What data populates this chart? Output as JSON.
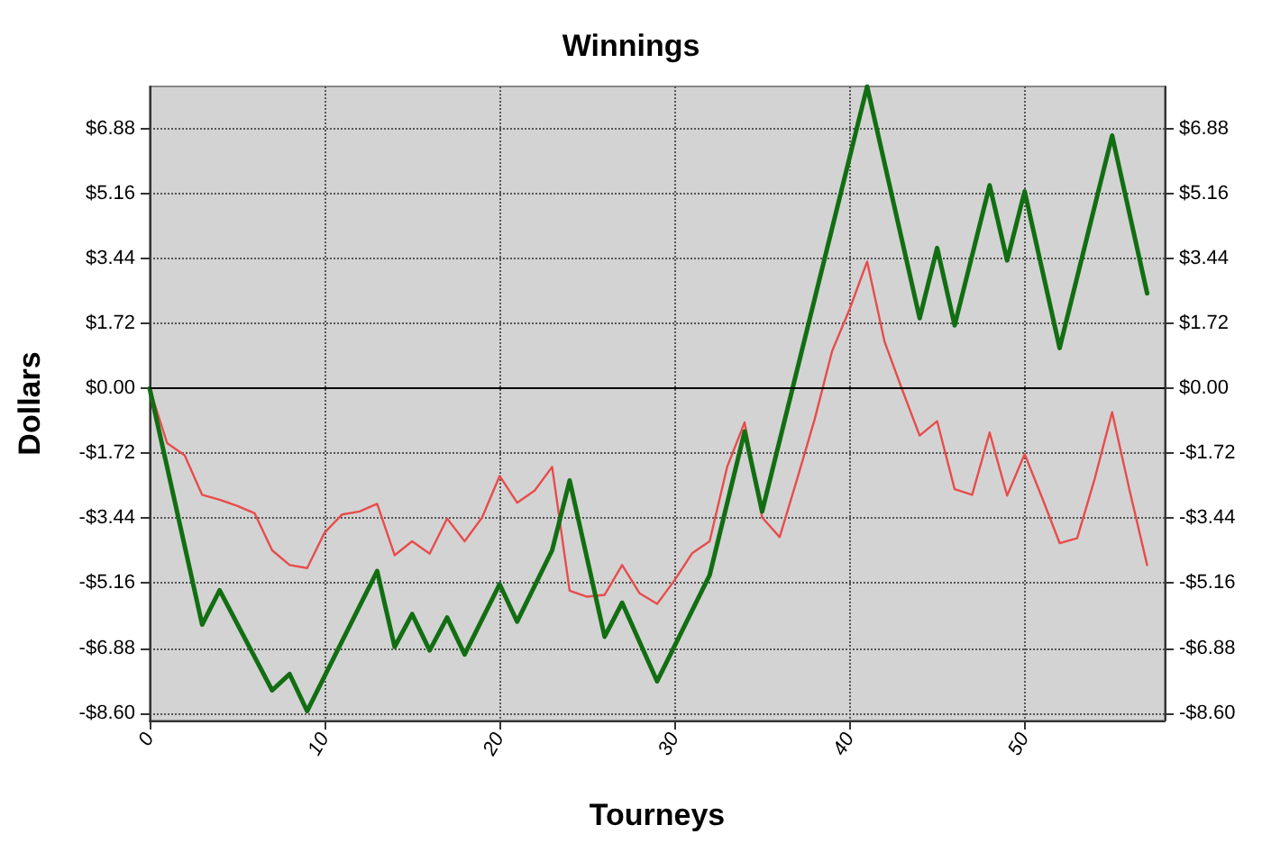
{
  "chart_data": {
    "type": "line",
    "title": "Winnings",
    "xlabel": "Tourneys",
    "ylabel": "Dollars",
    "xlim": [
      0,
      58
    ],
    "xticks": [
      0,
      10,
      20,
      30,
      40,
      50
    ],
    "ylim": [
      -8.8,
      8.0
    ],
    "yticks": [
      {
        "value": -8.6,
        "label": "-$8.60"
      },
      {
        "value": -6.88,
        "label": "-$6.88"
      },
      {
        "value": -5.16,
        "label": "-$5.16"
      },
      {
        "value": -3.44,
        "label": "-$3.44"
      },
      {
        "value": -1.72,
        "label": "-$1.72"
      },
      {
        "value": 0,
        "label": "$0.00"
      },
      {
        "value": 1.72,
        "label": "$1.72"
      },
      {
        "value": 3.44,
        "label": "$3.44"
      },
      {
        "value": 5.16,
        "label": "$5.16"
      },
      {
        "value": 6.88,
        "label": "$6.88"
      }
    ],
    "y2lim": [
      -8.8,
      8.0
    ],
    "y2ticks": [
      {
        "value": -8.6,
        "label": "-$8.60"
      },
      {
        "value": -6.88,
        "label": "-$6.88"
      },
      {
        "value": -5.16,
        "label": "-$5.16"
      },
      {
        "value": -3.44,
        "label": "-$3.44"
      },
      {
        "value": -1.72,
        "label": "-$1.72"
      },
      {
        "value": 0,
        "label": "$0.00"
      },
      {
        "value": 1.72,
        "label": "$1.72"
      },
      {
        "value": 3.44,
        "label": "$3.44"
      },
      {
        "value": 5.16,
        "label": "$5.16"
      },
      {
        "value": 6.88,
        "label": "$6.88"
      }
    ],
    "grid": true,
    "marker": "none",
    "line_style": "solid",
    "ref_lines": [
      {
        "axis": "y",
        "value": 0,
        "color": "#000000",
        "line_style": "solid"
      }
    ],
    "series": [
      {
        "color": "#e84c4c",
        "x": [
          0,
          1,
          2,
          3,
          4,
          5,
          6,
          7,
          8,
          9,
          10,
          11,
          12,
          13,
          14,
          15,
          16,
          17,
          18,
          19,
          20,
          21,
          22,
          23,
          24,
          25,
          26,
          27,
          28,
          29,
          30,
          31,
          32,
          33,
          34,
          35,
          36,
          37,
          38,
          39,
          40,
          41,
          42,
          43,
          44,
          45,
          46,
          47,
          48,
          49,
          50,
          51,
          52,
          53,
          54,
          55,
          56,
          57
        ],
        "values": [
          0,
          -1.45,
          -1.77,
          -2.82,
          -2.95,
          -3.11,
          -3.31,
          -4.29,
          -4.68,
          -4.76,
          -3.82,
          -3.34,
          -3.26,
          -3.06,
          -4.42,
          -4.05,
          -4.38,
          -3.45,
          -4.05,
          -3.42,
          -2.32,
          -3.03,
          -2.71,
          -2.08,
          -5.36,
          -5.52,
          -5.47,
          -4.68,
          -5.43,
          -5.71,
          -5.08,
          -4.37,
          -4.05,
          -2.08,
          -0.9,
          -3.42,
          -3.94,
          -2.4,
          -0.82,
          0.99,
          2.1,
          3.36,
          1.23,
          -0.03,
          -1.25,
          -0.87,
          -2.67,
          -2.82,
          -1.17,
          -2.84,
          -1.74,
          -2.9,
          -4.1,
          -3.97,
          -2.4,
          -0.63,
          -2.71,
          -4.68
        ]
      },
      {
        "color": "#126e12",
        "x": [
          0,
          3,
          4,
          7,
          8,
          9,
          13,
          14,
          15,
          16,
          17,
          18,
          20,
          21,
          23,
          24,
          26,
          27,
          29,
          32,
          34,
          35,
          41,
          44,
          45,
          46,
          48,
          49,
          50,
          52,
          55,
          57
        ],
        "values": [
          0,
          -6.26,
          -5.35,
          -8.0,
          -7.57,
          -8.55,
          -4.84,
          -6.85,
          -5.98,
          -6.94,
          -6.07,
          -7.05,
          -5.19,
          -6.18,
          -4.29,
          -2.44,
          -6.58,
          -5.68,
          -7.76,
          -4.95,
          -1.14,
          -3.26,
          8.0,
          1.86,
          3.72,
          1.67,
          5.38,
          3.39,
          5.22,
          1.07,
          6.7,
          2.52
        ]
      }
    ]
  }
}
